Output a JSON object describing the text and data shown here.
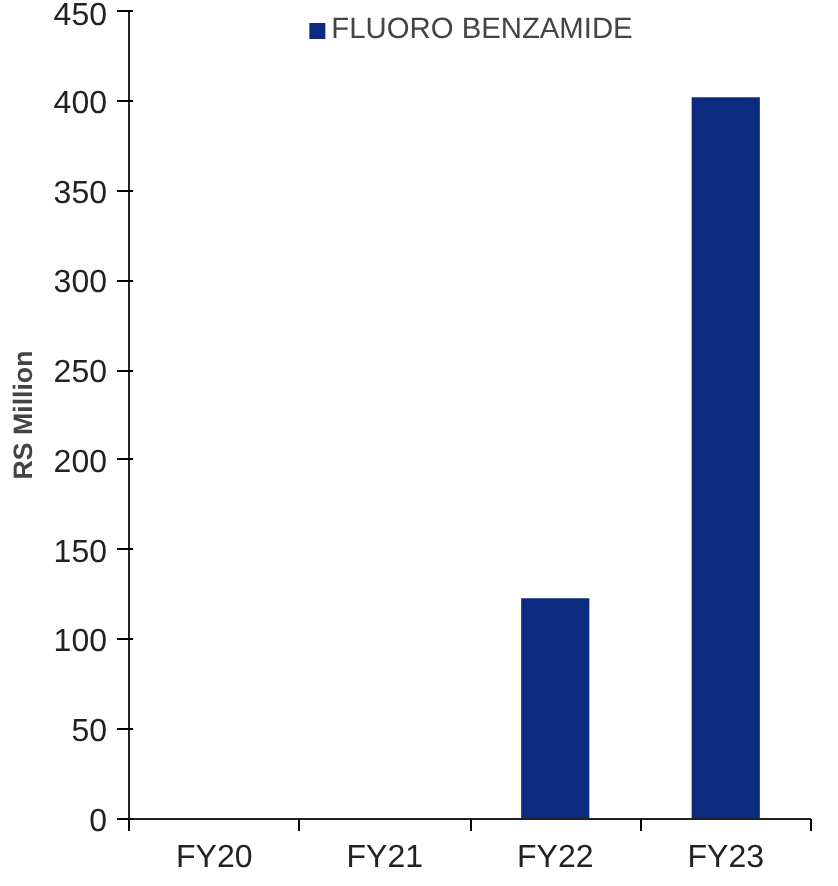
{
  "chart_data": {
    "type": "bar",
    "ylabel": "RS Million",
    "categories": [
      "FY20",
      "FY21",
      "FY22",
      "FY23"
    ],
    "series": [
      {
        "name": "FLUORO BENZAMIDE",
        "color": "#0c2a80",
        "values": [
          0,
          0,
          123,
          402
        ]
      }
    ],
    "ylim": [
      0,
      450
    ],
    "yticks": [
      0,
      50,
      100,
      150,
      200,
      250,
      300,
      350,
      400,
      450
    ],
    "grid": false,
    "legend": "top"
  }
}
